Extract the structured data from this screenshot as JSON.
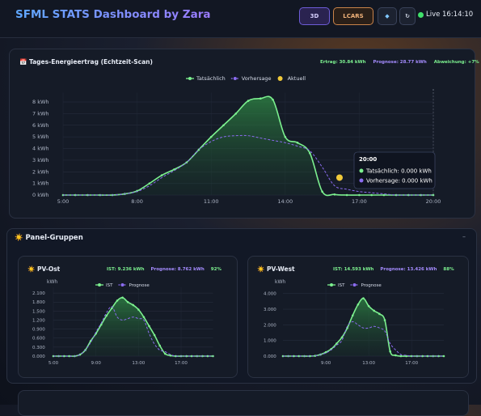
{
  "header": {
    "title": "SFML STATS Dashboard by Zara",
    "buttons": [
      "3D",
      "LCARS"
    ],
    "live": "Live",
    "time": "16:14:10"
  },
  "panels": {
    "title": "☀️ Panel-Gruppen",
    "collapse": "–"
  },
  "chart_data": [
    {
      "type": "line",
      "title": "📅 Tages-Energieertrag (Echtzeit-Scan)",
      "stats": [
        "Ertrag: 30.84 kWh",
        "Prognose: 28.77 kWh",
        "Abweichung: +7%"
      ],
      "x": [
        5,
        5.5,
        6,
        6.5,
        7,
        7.5,
        8,
        8.5,
        9,
        9.5,
        10,
        10.5,
        11,
        11.5,
        12,
        12.5,
        13,
        13.5,
        14,
        14.5,
        15,
        15.5,
        16,
        16.5,
        17,
        17.5,
        18,
        18.5,
        19,
        19.5,
        20
      ],
      "xlim": [
        5,
        20
      ],
      "xticks": [
        {
          "value": 5,
          "label": "5:00"
        },
        {
          "value": 8,
          "label": "8:00"
        },
        {
          "value": 11,
          "label": "11:00"
        },
        {
          "value": 14,
          "label": "14:00"
        },
        {
          "value": 17,
          "label": "17:00"
        },
        {
          "value": 20,
          "label": "20:00"
        }
      ],
      "ylim": [
        0,
        8.8
      ],
      "yticks": [
        {
          "value": 0,
          "label": "0 kWh"
        },
        {
          "value": 1,
          "label": "1 kWh"
        },
        {
          "value": 2,
          "label": "2 kWh"
        },
        {
          "value": 3,
          "label": "3 kWh"
        },
        {
          "value": 4,
          "label": "4 kWh"
        },
        {
          "value": 5,
          "label": "5 kWh"
        },
        {
          "value": 6,
          "label": "6 kWh"
        },
        {
          "value": 7,
          "label": "7 kWh"
        },
        {
          "value": 8,
          "label": "8 kWh"
        }
      ],
      "grid": true,
      "series": [
        {
          "name": "Tatsächlich",
          "color": "#7cf08f",
          "style": "solid",
          "fill": true,
          "values": [
            0,
            0,
            0,
            0,
            0,
            0.1,
            0.35,
            1.0,
            1.7,
            2.2,
            2.8,
            3.9,
            5.0,
            6.0,
            7.0,
            8.1,
            8.3,
            8.2,
            5.0,
            4.5,
            3.6,
            0.3,
            0.05,
            0,
            0,
            0,
            0,
            0,
            0,
            0,
            0
          ]
        },
        {
          "name": "Vorhersage",
          "color": "#8b6cf0",
          "style": "dashed",
          "values": [
            0,
            0,
            0,
            0,
            0,
            0.1,
            0.3,
            0.8,
            1.5,
            2.1,
            2.8,
            3.9,
            4.6,
            5.0,
            5.1,
            5.1,
            4.9,
            4.7,
            4.5,
            4.2,
            3.8,
            2.4,
            0.8,
            0.5,
            0.3,
            0.2,
            0.1,
            0,
            0,
            0,
            0
          ]
        },
        {
          "name": "Aktuell",
          "color": "#f0c93a",
          "style": "marker",
          "x": [
            16.2
          ],
          "values": [
            1.5
          ]
        }
      ],
      "tooltip": {
        "title": "20:00",
        "lines": [
          "Tatsächlich: 0.000 kWh",
          "Vorhersage: 0.000 kWh"
        ]
      }
    },
    {
      "type": "line",
      "title": "☀️ PV-Ost",
      "stats": [
        "IST: 9.236 kWh",
        "Prognose: 8.762 kWh",
        "92%"
      ],
      "ylabel": "kWh",
      "x": [
        5,
        5.5,
        6,
        6.5,
        7,
        7.5,
        8,
        8.5,
        9,
        9.5,
        10,
        10.5,
        11,
        11.5,
        12,
        12.5,
        13,
        13.5,
        14,
        14.5,
        15,
        15.5,
        16,
        16.5,
        17,
        17.5,
        18,
        18.5,
        19,
        19.5,
        20
      ],
      "xlim": [
        5,
        20
      ],
      "xticks": [
        {
          "value": 5,
          "label": "5:00"
        },
        {
          "value": 9,
          "label": "9:00"
        },
        {
          "value": 13,
          "label": "13:00"
        },
        {
          "value": 17,
          "label": "17:00"
        }
      ],
      "ylim": [
        0,
        2.3
      ],
      "yticks": [
        {
          "value": 0,
          "label": "0.000"
        },
        {
          "value": 0.3,
          "label": "0.300"
        },
        {
          "value": 0.6,
          "label": "0.600"
        },
        {
          "value": 0.9,
          "label": "0.900"
        },
        {
          "value": 1.2,
          "label": "1.200"
        },
        {
          "value": 1.5,
          "label": "1.500"
        },
        {
          "value": 1.8,
          "label": "1.800"
        },
        {
          "value": 2.1,
          "label": "2.100"
        }
      ],
      "grid": true,
      "series": [
        {
          "name": "IST",
          "color": "#7cf08f",
          "style": "solid",
          "fill": true,
          "values": [
            0,
            0,
            0,
            0,
            0,
            0.05,
            0.2,
            0.5,
            0.75,
            1.05,
            1.35,
            1.6,
            1.85,
            1.95,
            1.8,
            1.7,
            1.55,
            1.3,
            1.0,
            0.7,
            0.35,
            0.08,
            0.02,
            0,
            0,
            0,
            0,
            0,
            0,
            0,
            0
          ]
        },
        {
          "name": "Prognose",
          "color": "#8b6cf0",
          "style": "dashed",
          "values": [
            0,
            0,
            0,
            0,
            0,
            0.05,
            0.2,
            0.45,
            0.8,
            1.1,
            1.45,
            1.65,
            1.3,
            1.2,
            1.25,
            1.3,
            1.25,
            1.2,
            0.75,
            0.4,
            0.2,
            0.15,
            0.05,
            0,
            0,
            0,
            0,
            0,
            0,
            0,
            0
          ]
        }
      ]
    },
    {
      "type": "line",
      "title": "☀️ PV-West",
      "stats": [
        "IST: 14.593 kWh",
        "Prognose: 13.426 kWh",
        "88%"
      ],
      "ylabel": "kWh",
      "x": [
        5,
        5.5,
        6,
        6.5,
        7,
        7.5,
        8,
        8.5,
        9,
        9.5,
        10,
        10.5,
        11,
        11.5,
        12,
        12.5,
        13,
        13.5,
        14,
        14.5,
        15,
        15.5,
        16,
        16.5,
        17,
        17.5,
        18,
        18.5,
        19,
        19.5,
        20
      ],
      "xlim": [
        5,
        20
      ],
      "xticks": [
        {
          "value": 9,
          "label": "9:00"
        },
        {
          "value": 13,
          "label": "13:00"
        },
        {
          "value": 17,
          "label": "17:00"
        }
      ],
      "ylim": [
        0,
        4.4
      ],
      "yticks": [
        {
          "value": 0,
          "label": "0.000"
        },
        {
          "value": 1,
          "label": "1.000"
        },
        {
          "value": 2,
          "label": "2.000"
        },
        {
          "value": 3,
          "label": "3.000"
        },
        {
          "value": 4,
          "label": "4.000"
        }
      ],
      "grid": true,
      "series": [
        {
          "name": "IST",
          "color": "#7cf08f",
          "style": "solid",
          "fill": true,
          "values": [
            0,
            0,
            0,
            0,
            0,
            0,
            0.02,
            0.1,
            0.25,
            0.45,
            0.8,
            1.2,
            1.8,
            2.6,
            3.3,
            3.7,
            3.2,
            2.9,
            2.7,
            2.3,
            0.3,
            0.05,
            0,
            0,
            0,
            0,
            0,
            0,
            0,
            0,
            0
          ]
        },
        {
          "name": "Prognose",
          "color": "#8b6cf0",
          "style": "dashed",
          "values": [
            0,
            0,
            0,
            0,
            0,
            0,
            0.02,
            0.1,
            0.2,
            0.4,
            0.7,
            1.0,
            1.9,
            2.2,
            2.0,
            1.8,
            1.8,
            1.9,
            1.8,
            1.6,
            0.8,
            0.4,
            0.1,
            0.05,
            0,
            0,
            0,
            0,
            0,
            0,
            0
          ]
        }
      ]
    }
  ]
}
